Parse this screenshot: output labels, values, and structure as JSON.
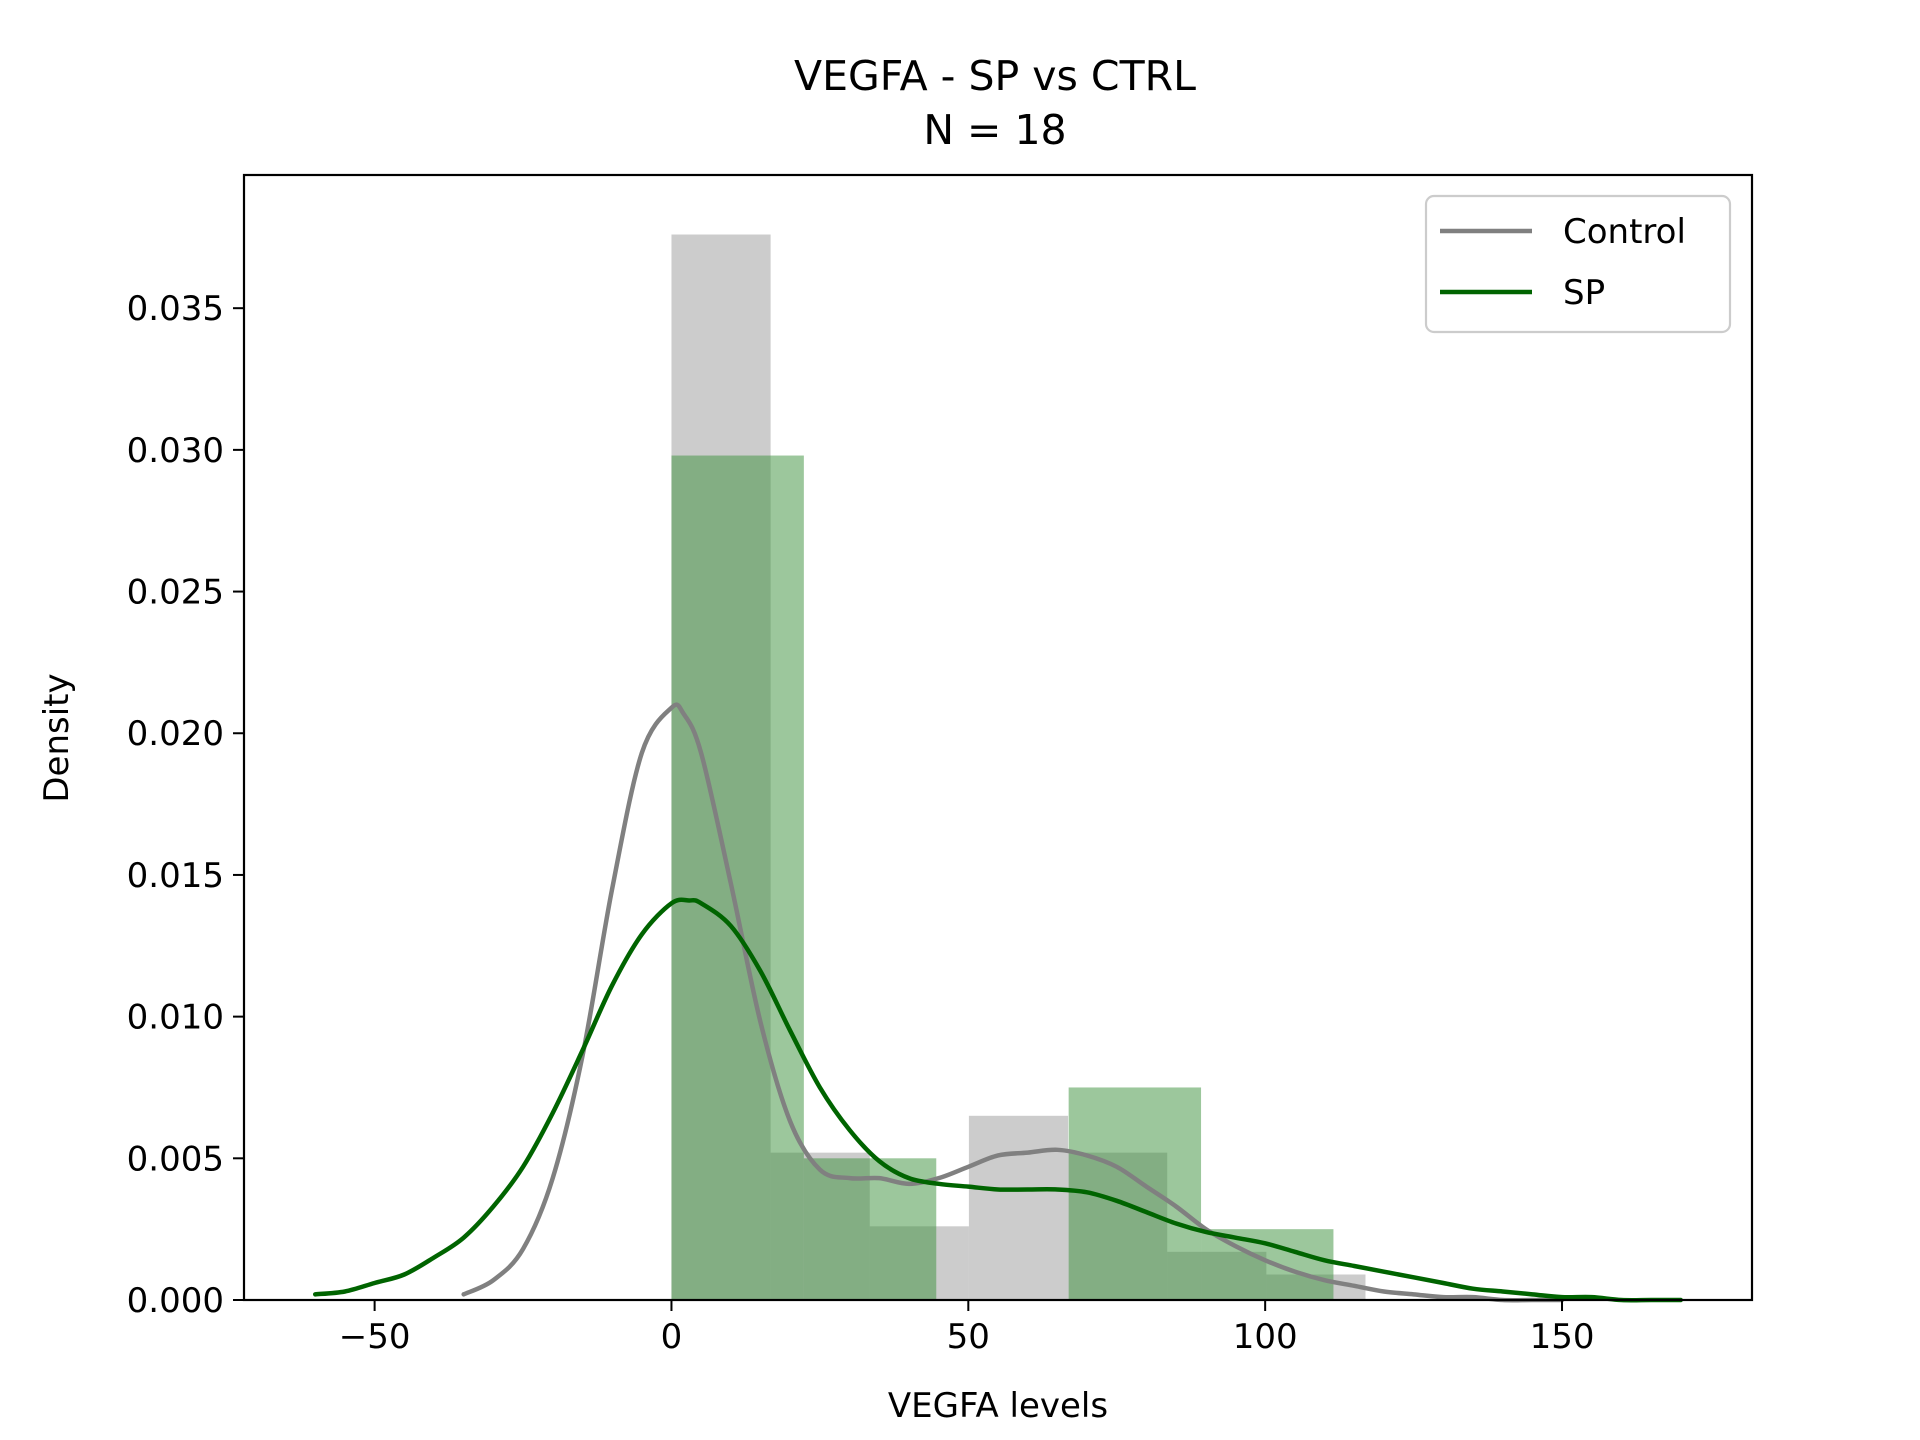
{
  "chart_data": {
    "type": "bar",
    "title": "VEGFA - SP vs CTRL",
    "subtitle": "N = 18",
    "xlabel": "VEGFA levels",
    "ylabel": "Density",
    "xlim": [
      -72,
      182
    ],
    "ylim": [
      0,
      0.0397
    ],
    "xticks": [
      -50,
      0,
      50,
      100,
      150
    ],
    "xtick_labels": [
      "−50",
      "0",
      "50",
      "100",
      "150"
    ],
    "yticks": [
      0.0,
      0.005,
      0.01,
      0.015,
      0.02,
      0.025,
      0.03,
      0.035
    ],
    "ytick_labels": [
      "0.000",
      "0.005",
      "0.010",
      "0.015",
      "0.020",
      "0.025",
      "0.030",
      "0.035"
    ],
    "grid": false,
    "legend_position": "top-right",
    "legend": [
      "Control",
      "SP"
    ],
    "colors": {
      "Control": "#808080",
      "SP": "#006400",
      "control_hist": "#999999",
      "sp_hist": "#3a8f3a"
    },
    "series": [
      {
        "name": "Control",
        "histogram": {
          "bin_edges": [
            0,
            16.7,
            33.4,
            50.1,
            66.8,
            83.5,
            100.2,
            116.9
          ],
          "density": [
            0.0376,
            0.0052,
            0.0026,
            0.0065,
            0.0052,
            0.0017,
            0.0009
          ]
        },
        "kde": {
          "x": [
            -35,
            -30,
            -25,
            -20,
            -15,
            -10,
            -5,
            0,
            2,
            5,
            10,
            15,
            20,
            25,
            30,
            35,
            40,
            45,
            50,
            55,
            60,
            65,
            70,
            75,
            80,
            85,
            90,
            95,
            100,
            105,
            110,
            115,
            120,
            125,
            130,
            135,
            140,
            145,
            150
          ],
          "y": [
            0.0002,
            0.0007,
            0.0018,
            0.0043,
            0.0086,
            0.0145,
            0.0193,
            0.0209,
            0.0207,
            0.0193,
            0.0147,
            0.0098,
            0.0063,
            0.0046,
            0.0043,
            0.0043,
            0.0041,
            0.0043,
            0.0047,
            0.0051,
            0.0052,
            0.0053,
            0.0051,
            0.0047,
            0.004,
            0.0033,
            0.0025,
            0.0019,
            0.0014,
            0.001,
            0.0007,
            0.0005,
            0.0003,
            0.0002,
            0.0001,
            0.0001,
            0.0,
            0.0,
            0.0
          ]
        }
      },
      {
        "name": "SP",
        "histogram": {
          "bin_edges": [
            0,
            22.3,
            44.6,
            66.9,
            89.2,
            111.5
          ],
          "density": [
            0.0298,
            0.005,
            0.0,
            0.0075,
            0.0025
          ]
        },
        "kde": {
          "x": [
            -60,
            -55,
            -50,
            -45,
            -40,
            -35,
            -30,
            -25,
            -20,
            -15,
            -10,
            -5,
            0,
            3,
            5,
            10,
            15,
            20,
            25,
            30,
            35,
            40,
            45,
            50,
            55,
            60,
            65,
            70,
            75,
            80,
            85,
            90,
            95,
            100,
            105,
            110,
            115,
            120,
            125,
            130,
            135,
            140,
            145,
            150,
            155,
            160,
            165,
            170
          ],
          "y": [
            0.0002,
            0.0003,
            0.0006,
            0.0009,
            0.0015,
            0.0022,
            0.0033,
            0.0047,
            0.0066,
            0.0088,
            0.0111,
            0.0129,
            0.014,
            0.0141,
            0.014,
            0.0132,
            0.0116,
            0.0095,
            0.0075,
            0.006,
            0.0049,
            0.0043,
            0.0041,
            0.004,
            0.0039,
            0.0039,
            0.0039,
            0.0038,
            0.0035,
            0.0031,
            0.0027,
            0.0024,
            0.0022,
            0.002,
            0.0017,
            0.0014,
            0.0012,
            0.001,
            0.0008,
            0.0006,
            0.0004,
            0.0003,
            0.0002,
            0.0001,
            0.0001,
            0.0,
            0.0,
            0.0
          ]
        }
      }
    ]
  }
}
